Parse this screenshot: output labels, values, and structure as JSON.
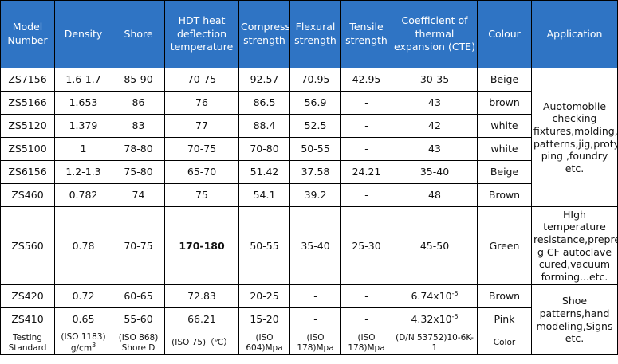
{
  "headers": [
    "Model Number",
    "Density",
    "Shore",
    "HDT heat deflection temperature",
    "Compressive strength",
    "Flexural strength",
    "Tensile strength",
    "Coefficient of thermal expansion (CTE)",
    "Colour",
    "Application"
  ],
  "rows": [
    {
      "model": "ZS7156",
      "density": "1.6-1.7",
      "shore": "85-90",
      "hdt": "70-75",
      "comp": "92.57",
      "flex": "70.95",
      "tensile": "42.95",
      "cte": "30-35",
      "colour": "Beige"
    },
    {
      "model": "ZS5166",
      "density": "1.653",
      "shore": "86",
      "hdt": "76",
      "comp": "86.5",
      "flex": "56.9",
      "tensile": "-",
      "cte": "43",
      "colour": "brown"
    },
    {
      "model": "ZS5120",
      "density": "1.379",
      "shore": "83",
      "hdt": "77",
      "comp": "88.4",
      "flex": "52.5",
      "tensile": "-",
      "cte": "42",
      "colour": "white"
    },
    {
      "model": "ZS5100",
      "density": "1",
      "shore": "78-80",
      "hdt": "70-75",
      "comp": "70-80",
      "flex": "50-55",
      "tensile": "-",
      "cte": "43",
      "colour": "white"
    },
    {
      "model": "ZS6156",
      "density": "1.2-1.3",
      "shore": "75-80",
      "hdt": "65-70",
      "comp": "51.42",
      "flex": "37.58",
      "tensile": "24.21",
      "cte": "35-40",
      "colour": "Beige"
    },
    {
      "model": "ZS460",
      "density": "0.782",
      "shore": "74",
      "hdt": "75",
      "comp": "54.1",
      "flex": "39.2",
      "tensile": "-",
      "cte": "48",
      "colour": "Brown"
    },
    {
      "model": "ZS560",
      "density": "0.78",
      "shore": "70-75",
      "hdt": "170-180",
      "comp": "50-55",
      "flex": "35-40",
      "tensile": "25-30",
      "cte": "45-50",
      "colour": "Green"
    },
    {
      "model": "ZS420",
      "density": "0.72",
      "shore": "60-65",
      "hdt": "72.83",
      "comp": "20-25",
      "flex": "-",
      "tensile": "-",
      "cte": "6.74x10",
      "colour": "Brown"
    },
    {
      "model": "ZS410",
      "density": "0.65",
      "shore": "55-60",
      "hdt": "66.21",
      "comp": "15-20",
      "flex": "-",
      "tensile": "-",
      "cte": "4.32x10",
      "colour": "Pink"
    }
  ],
  "cte_exponent": "-5",
  "applications": {
    "group1": "Auotomobile checking fixtures,molding, patterns,jig,proty ping ,foundry etc.",
    "group2": "HIgh temperature resistance,prepre g CF autoclave cured,vacuum forming...etc.",
    "group3": "Shoe patterns,hand modeling,Signs etc."
  },
  "standard": {
    "model": "Testing Standard",
    "density": "(ISO 1183) g/cm",
    "density_sup": "3",
    "shore": "(ISO 868) Shore D",
    "hdt": "(ISO 75)（℃）",
    "comp": "(ISO 604)Mpa",
    "flex": "(ISO 178)Mpa",
    "tensile": "(ISO 178)Mpa",
    "cte": "(D/N 53752)10-6K-1",
    "colour": "Color"
  },
  "colors": {
    "header_bg": "#2f74c4",
    "highlight_red": "#c00000"
  }
}
